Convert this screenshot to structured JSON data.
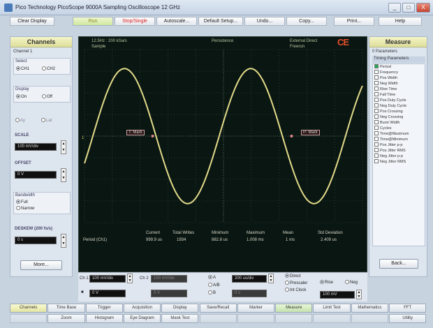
{
  "window": {
    "title": "Pico Technology   PicoScope 9000A   Sampling Oscilloscope 12 GHz",
    "min": "_",
    "max": "□",
    "close": "X"
  },
  "toolbar": {
    "clear_display": "Clear Display",
    "run": "Run",
    "stop_single": "Stop/Single",
    "autoscale": "Autoscale...",
    "default_setup": "Default Setup...",
    "undo": "Undo...",
    "copy": "Copy...",
    "print": "Print...",
    "help": "Help"
  },
  "channels": {
    "title": "Channels",
    "channel_label": "Channel 1",
    "select_label": "Select",
    "select_options": [
      "CH1",
      "CH2"
    ],
    "display_label": "Display",
    "display_options": [
      "On",
      "Off"
    ],
    "extra_options": [
      "Ay",
      "Lat"
    ],
    "scale_label": "SCALE",
    "scale_value": "100 mV/div",
    "offset_label": "OFFSET",
    "offset_value": "0 V",
    "bandwidth_label": "Bandwidth",
    "bandwidth_options": [
      "Full",
      "Narrow"
    ],
    "deskew_label": "DESKEW (200 fs/s)",
    "deskew_value": "0 s",
    "more_button": "More..."
  },
  "scope": {
    "top_left_1": "12.5Hz : 200 kSa/s",
    "top_left_2": "Sample",
    "top_center": "Persistence",
    "top_right_1": "External Direct",
    "top_right_2": "Freerun",
    "logo": "CE",
    "marker1_label": "T: Mark",
    "marker2_label": "P: Mark",
    "ch_label": "1",
    "stats_headers": [
      "Current",
      "Total Writes",
      "Minimum",
      "Maximum",
      "Mean",
      "Std Deviation"
    ],
    "stats_row_label": "Period (Ch1)",
    "stats_values": [
      "999.9 us",
      "1934",
      "882.8 us",
      "1.008 ms",
      "1 ms",
      "2.409 us"
    ]
  },
  "measure": {
    "title": "Measure",
    "count_label": "0 Parameters",
    "group_label": "Timing Parameters",
    "items": [
      "Period",
      "Frequency",
      "Pos Width",
      "Neg Width",
      "Rise Time",
      "Fall Time",
      "Pos Duty Cycle",
      "Neg Duty Cycle",
      "Pos Crossing",
      "Neg Crossing",
      "Burst Width",
      "Cycles",
      "Time@Maximum",
      "Time@Minimum",
      "Pos Jitter p-p",
      "Pos Jitter RMS",
      "Neg Jitter p-p",
      "Neg Jitter RMS"
    ],
    "back_button": "Back..."
  },
  "bottom": {
    "ch1_label": "Ch 1",
    "ch1_scale": "100 mV/div",
    "ch1_offset": "0 V",
    "ch2_label": "Ch 2",
    "ch2_scale": "100 mV/div",
    "ch2_offset": "0 V",
    "mode_a": "A",
    "mode_ab": "A/B",
    "mode_b": "B",
    "time_scale": "200 us/div",
    "time_offset": "0 s",
    "trig_direct": "Direct",
    "trig_prescaler": "Prescaler",
    "trig_int_clock": "Int Clock",
    "trig_rise": "Rise",
    "trig_neg": "Neg",
    "trig_level": "100 mV"
  },
  "tabs": {
    "row1": [
      "Channels",
      "Time Base",
      "Trigger",
      "Acquisition",
      "Display",
      "Save/Recall",
      "Marker",
      "Measure",
      "Limit Test",
      "Mathematics",
      "FFT"
    ],
    "row2": [
      "Zoom",
      "Histogram",
      "Eye Diagram",
      "Mask Test",
      "Utility"
    ]
  }
}
